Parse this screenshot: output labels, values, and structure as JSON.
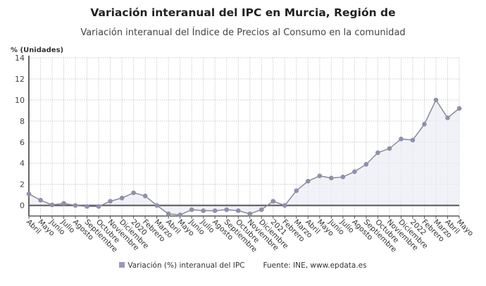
{
  "chart_data": {
    "type": "area",
    "title": "Variación interanual del IPC en Murcia, Región de",
    "subtitle": "Variación interanual del Índice de Precios al Consumo en la comunidad",
    "ylabel": "% (Unidades)",
    "xlabel": "",
    "ylim": [
      -1,
      14
    ],
    "yticks": [
      0,
      2,
      4,
      6,
      8,
      10,
      12,
      14
    ],
    "grid": true,
    "legend_position": "bottom",
    "categories": [
      "Abril",
      "Mayo",
      "Junio",
      "Julio",
      "Agosto",
      "Septiembre",
      "Octubre",
      "Noviembre",
      "Diciembre",
      "2020",
      "Febrero",
      "Marzo",
      "Abril",
      "Mayo",
      "Junio",
      "Julio",
      "Agosto",
      "Septiembre",
      "Octubre",
      "Noviembre",
      "Diciembre",
      "2021",
      "Febrero",
      "Marzo",
      "Abril",
      "Mayo",
      "Junio",
      "Julio",
      "Agosto",
      "Septiembre",
      "Octubre",
      "Noviembre",
      "Diciembre",
      "2022",
      "Febrero",
      "Marzo",
      "Abril",
      "Mayo"
    ],
    "series": [
      {
        "name": "Variación (%) interanual del IPC",
        "color": "#8f8fad",
        "values": [
          1.1,
          0.5,
          0.05,
          0.2,
          0.0,
          -0.1,
          -0.1,
          0.4,
          0.7,
          1.2,
          0.9,
          0.0,
          -0.8,
          -0.9,
          -0.4,
          -0.5,
          -0.5,
          -0.4,
          -0.5,
          -0.8,
          -0.4,
          0.4,
          0.0,
          1.4,
          2.3,
          2.8,
          2.6,
          2.7,
          3.2,
          3.9,
          5.0,
          5.4,
          6.3,
          6.2,
          7.7,
          10.0,
          8.3,
          9.2
        ]
      }
    ],
    "source": "Fuente: INE, www.epdata.es"
  }
}
